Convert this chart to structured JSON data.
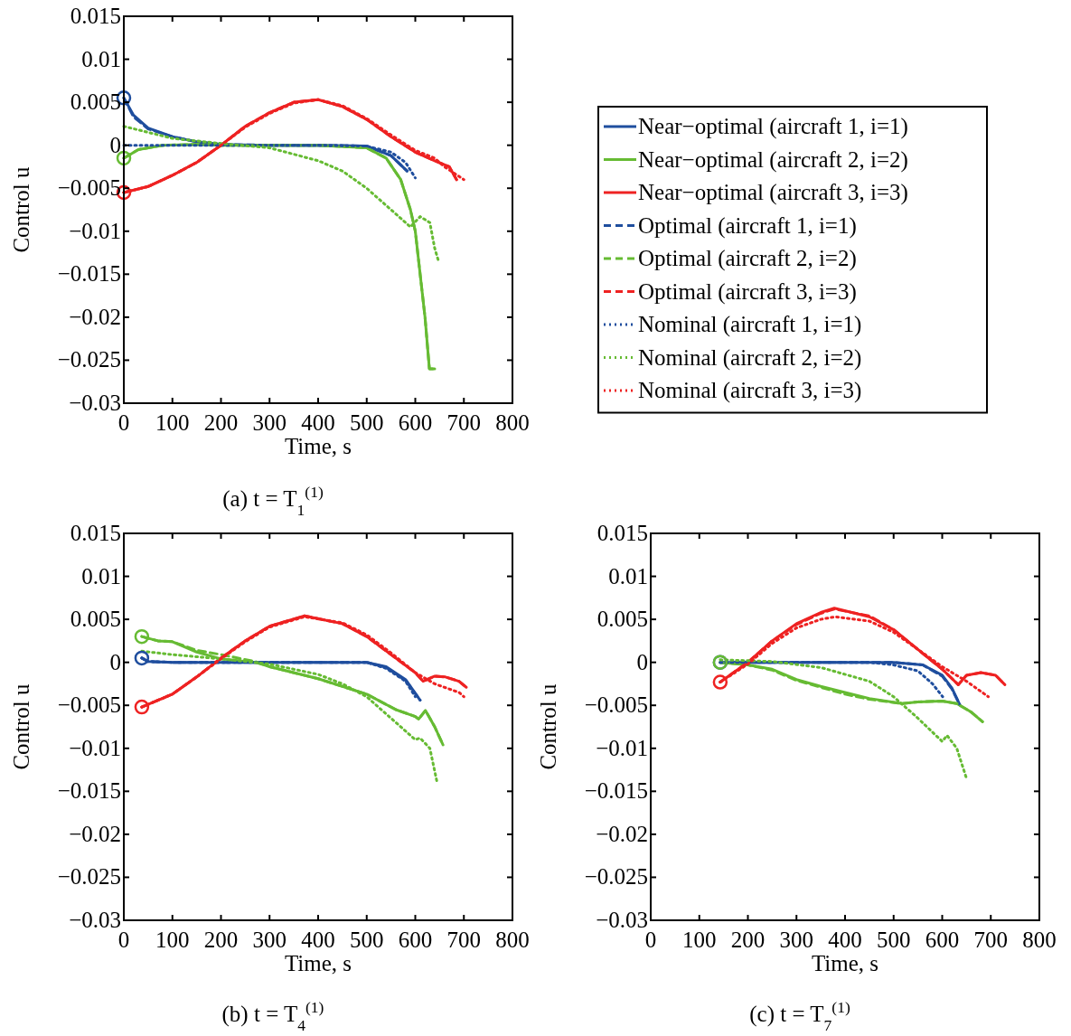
{
  "chart_data": [
    {
      "type": "line",
      "title": "(a) t = T$_{1}$$^{(1)}$",
      "xlabel": "Time, s",
      "ylabel": "Control u",
      "xlim": [
        0,
        800
      ],
      "ylim": [
        -0.03,
        0.015
      ],
      "xticks": [
        0,
        100,
        200,
        300,
        400,
        500,
        600,
        700,
        800
      ],
      "yticks": [
        0.015,
        0.01,
        0.005,
        0,
        {
          "value": -0.005,
          "label": "−0.005"
        },
        {
          "value": -0.01,
          "label": "−0.01"
        },
        {
          "value": -0.015,
          "label": "−0.015"
        },
        {
          "value": -0.02,
          "label": "−0.02"
        },
        {
          "value": -0.025,
          "label": "−0.025"
        },
        {
          "value": -0.03,
          "label": "−0.03"
        }
      ],
      "grid": false,
      "legend": "right",
      "series": [
        {
          "name": "Near−optimal (aircraft 1, i=1)",
          "color": "#1f4e9e",
          "line_style": "solid",
          "x": [
            0,
            20,
            50,
            100,
            150,
            200,
            300,
            400,
            500,
            550,
            583
          ],
          "values": [
            0.0055,
            0.0035,
            0.002,
            0.001,
            0.0004,
            0.0001,
            0,
            0,
            -0.0001,
            -0.0012,
            -0.003
          ]
        },
        {
          "name": "Near−optimal (aircraft 2, i=2)",
          "color": "#66bb33",
          "line_style": "solid",
          "x": [
            0,
            30,
            80,
            150,
            200,
            400,
            500,
            540,
            570,
            590,
            600,
            610,
            620,
            629,
            640
          ],
          "values": [
            -0.0015,
            -0.0005,
            0,
            0.0001,
            0,
            0,
            -0.0003,
            -0.0015,
            -0.004,
            -0.0075,
            -0.01,
            -0.015,
            -0.02,
            -0.026,
            -0.026
          ]
        },
        {
          "name": "Near−optimal (aircraft 3, i=3)",
          "color": "#ee2222",
          "line_style": "solid",
          "x": [
            0,
            50,
            100,
            150,
            200,
            250,
            300,
            350,
            400,
            450,
            500,
            550,
            600,
            640,
            670,
            685
          ],
          "values": [
            -0.0055,
            -0.0048,
            -0.0035,
            -0.002,
            0,
            0.0022,
            0.0038,
            0.005,
            0.0053,
            0.0045,
            0.003,
            0.001,
            -0.0008,
            -0.0018,
            -0.0025,
            -0.004
          ]
        },
        {
          "name": "Optimal (aircraft 1, i=1)",
          "color": "#1f4e9e",
          "line_style": "dashed",
          "x": [
            0,
            20,
            50,
            100,
            150,
            200,
            300,
            400,
            500,
            550,
            583
          ],
          "values": [
            0.0055,
            0.0033,
            0.0019,
            0.001,
            0.0004,
            0.0001,
            0,
            0,
            -0.0001,
            -0.0012,
            -0.003
          ]
        },
        {
          "name": "Optimal (aircraft 2, i=2)",
          "color": "#66bb33",
          "line_style": "dashed",
          "x": [
            0,
            30,
            80,
            150,
            200,
            400,
            500,
            540,
            570,
            590,
            600,
            610,
            620,
            629,
            640
          ],
          "values": [
            -0.0015,
            -0.0005,
            0,
            0.0001,
            0,
            0,
            -0.0003,
            -0.0015,
            -0.004,
            -0.0075,
            -0.01,
            -0.015,
            -0.02,
            -0.026,
            -0.026
          ]
        },
        {
          "name": "Optimal (aircraft 3, i=3)",
          "color": "#ee2222",
          "line_style": "dashed",
          "x": [
            0,
            50,
            100,
            150,
            200,
            250,
            300,
            350,
            400,
            450,
            500,
            550,
            600,
            640,
            670,
            685
          ],
          "values": [
            -0.0055,
            -0.0048,
            -0.0035,
            -0.002,
            0,
            0.0022,
            0.0038,
            0.005,
            0.0053,
            0.0045,
            0.003,
            0.001,
            -0.0008,
            -0.0018,
            -0.0025,
            -0.004
          ]
        },
        {
          "name": "Nominal (aircraft 1, i=1)",
          "color": "#1f4e9e",
          "line_style": "dotted",
          "x": [
            0,
            200,
            400,
            500,
            550,
            580,
            600
          ],
          "values": [
            0,
            0,
            0,
            -0.0001,
            -0.0008,
            -0.002,
            -0.0038
          ]
        },
        {
          "name": "Nominal (aircraft 2, i=2)",
          "color": "#66bb33",
          "line_style": "dotted",
          "x": [
            0,
            50,
            100,
            200,
            300,
            400,
            450,
            500,
            550,
            590,
            610,
            630,
            640,
            649
          ],
          "values": [
            0.0022,
            0.0015,
            0.0008,
            0.0002,
            -0.0003,
            -0.0018,
            -0.003,
            -0.005,
            -0.0075,
            -0.0095,
            -0.0083,
            -0.009,
            -0.012,
            -0.0137
          ]
        },
        {
          "name": "Nominal (aircraft 3, i=3)",
          "color": "#ee2222",
          "line_style": "dotted",
          "x": [
            0,
            50,
            100,
            150,
            200,
            250,
            300,
            350,
            400,
            450,
            500,
            550,
            600,
            640,
            660,
            700
          ],
          "values": [
            -0.0055,
            -0.0048,
            -0.0035,
            -0.002,
            0,
            0.0021,
            0.0037,
            0.0049,
            0.0053,
            0.0046,
            0.0031,
            0.0012,
            -0.0006,
            -0.0015,
            -0.0025,
            -0.004
          ]
        },
        {
          "type": "scatter",
          "marker": "circle",
          "color": "#1f4e9e",
          "x": [
            0
          ],
          "values": [
            0.0055
          ]
        },
        {
          "type": "scatter",
          "marker": "circle",
          "color": "#66bb33",
          "x": [
            0
          ],
          "values": [
            -0.0015
          ]
        },
        {
          "type": "scatter",
          "marker": "circle",
          "color": "#ee2222",
          "x": [
            0
          ],
          "values": [
            -0.0055
          ]
        }
      ]
    },
    {
      "type": "line",
      "title": "(b) t = T$_{4}$$^{(1)}$",
      "xlabel": "Time, s",
      "ylabel": "Control u",
      "xlim": [
        0,
        800
      ],
      "ylim": [
        -0.03,
        0.015
      ],
      "xticks": [
        0,
        100,
        200,
        300,
        400,
        500,
        600,
        700,
        800
      ],
      "yticks": [
        0.015,
        0.01,
        0.005,
        0,
        {
          "value": -0.005,
          "label": "−0.005"
        },
        {
          "value": -0.01,
          "label": "−0.01"
        },
        {
          "value": -0.015,
          "label": "−0.015"
        },
        {
          "value": -0.02,
          "label": "−0.02"
        },
        {
          "value": -0.025,
          "label": "−0.025"
        },
        {
          "value": -0.03,
          "label": "−0.03"
        }
      ],
      "grid": false,
      "legend": false,
      "series": [
        {
          "color": "#1f4e9e",
          "line_style": "solid",
          "x": [
            37,
            50,
            100,
            500,
            540,
            580,
            610
          ],
          "values": [
            0.0005,
            0.0001,
            0,
            0,
            -0.0005,
            -0.002,
            -0.0044
          ]
        },
        {
          "color": "#66bb33",
          "line_style": "solid",
          "x": [
            37,
            70,
            100,
            150,
            200,
            270,
            300,
            400,
            500,
            560,
            600,
            607,
            621,
            640,
            657
          ],
          "values": [
            0.003,
            0.0025,
            0.0024,
            0.0012,
            0.0004,
            0,
            -0.0005,
            -0.0019,
            -0.0037,
            -0.0055,
            -0.0063,
            -0.0066,
            -0.0056,
            -0.0075,
            -0.0096
          ]
        },
        {
          "color": "#ee2222",
          "line_style": "solid",
          "x": [
            37,
            100,
            150,
            200,
            250,
            300,
            372,
            450,
            500,
            550,
            600,
            616,
            640,
            662,
            690,
            705
          ],
          "values": [
            -0.0052,
            -0.0037,
            -0.0017,
            0.0005,
            0.0025,
            0.0042,
            0.0054,
            0.0045,
            0.003,
            0.0009,
            -0.0012,
            -0.0022,
            -0.0016,
            -0.0017,
            -0.0022,
            -0.0029
          ]
        },
        {
          "color": "#1f4e9e",
          "line_style": "dashed",
          "x": [
            37,
            50,
            100,
            500,
            540,
            580,
            610
          ],
          "values": [
            0.0005,
            0.0001,
            0,
            0,
            -0.0006,
            -0.0021,
            -0.0044
          ]
        },
        {
          "color": "#66bb33",
          "line_style": "dashed",
          "x": [
            37,
            70,
            100,
            150,
            200,
            270,
            300,
            400,
            500,
            560,
            600,
            607,
            621,
            640,
            657
          ],
          "values": [
            0.003,
            0.0025,
            0.0024,
            0.0014,
            0.0009,
            0.0001,
            -0.0005,
            -0.0019,
            -0.0037,
            -0.0055,
            -0.0063,
            -0.0066,
            -0.0056,
            -0.0075,
            -0.0096
          ]
        },
        {
          "color": "#ee2222",
          "line_style": "dashed",
          "x": [
            37,
            100,
            150,
            200,
            250,
            300,
            372,
            450,
            500,
            550,
            600,
            616,
            640,
            662,
            690,
            705
          ],
          "values": [
            -0.0052,
            -0.0037,
            -0.0017,
            0.0005,
            0.0025,
            0.0042,
            0.0054,
            0.0045,
            0.003,
            0.0009,
            -0.0012,
            -0.0022,
            -0.0016,
            -0.0017,
            -0.0022,
            -0.0029
          ]
        },
        {
          "color": "#1f4e9e",
          "line_style": "dotted",
          "x": [
            37,
            50,
            100,
            500,
            540,
            580,
            600
          ],
          "values": [
            0.0005,
            0.0001,
            0,
            0,
            -0.0007,
            -0.0022,
            -0.004
          ]
        },
        {
          "color": "#66bb33",
          "line_style": "dotted",
          "x": [
            37,
            100,
            200,
            300,
            400,
            450,
            500,
            550,
            600,
            610,
            630,
            645
          ],
          "values": [
            0.0013,
            0.0009,
            0.0004,
            -0.0002,
            -0.0014,
            -0.0025,
            -0.004,
            -0.0065,
            -0.009,
            -0.0088,
            -0.01,
            -0.014
          ]
        },
        {
          "color": "#ee2222",
          "line_style": "dotted",
          "x": [
            37,
            100,
            150,
            200,
            250,
            300,
            372,
            450,
            500,
            550,
            600,
            640,
            690,
            700
          ],
          "values": [
            -0.0052,
            -0.0037,
            -0.0017,
            0.0004,
            0.0024,
            0.0041,
            0.0053,
            0.0046,
            0.0032,
            0.0011,
            -0.0012,
            -0.0025,
            -0.0035,
            -0.004
          ]
        },
        {
          "type": "scatter",
          "marker": "circle",
          "color": "#1f4e9e",
          "x": [
            37
          ],
          "values": [
            0.0005
          ]
        },
        {
          "type": "scatter",
          "marker": "circle",
          "color": "#66bb33",
          "x": [
            37
          ],
          "values": [
            0.003
          ]
        },
        {
          "type": "scatter",
          "marker": "circle",
          "color": "#ee2222",
          "x": [
            37
          ],
          "values": [
            -0.0052
          ]
        }
      ]
    },
    {
      "type": "line",
      "title": "(c) t = T$_{7}$$^{(1)}$",
      "xlabel": "Time, s",
      "ylabel": "Control u",
      "xlim": [
        0,
        800
      ],
      "ylim": [
        -0.03,
        0.015
      ],
      "xticks": [
        0,
        100,
        200,
        300,
        400,
        500,
        600,
        700,
        800
      ],
      "yticks": [
        0.015,
        0.01,
        0.005,
        0,
        {
          "value": -0.005,
          "label": "−0.005"
        },
        {
          "value": -0.01,
          "label": "−0.01"
        },
        {
          "value": -0.015,
          "label": "−0.015"
        },
        {
          "value": -0.02,
          "label": "−0.02"
        },
        {
          "value": -0.025,
          "label": "−0.025"
        },
        {
          "value": -0.03,
          "label": "−0.03"
        }
      ],
      "grid": false,
      "legend": false,
      "series": [
        {
          "color": "#1f4e9e",
          "line_style": "solid",
          "x": [
            143,
            500,
            560,
            600,
            620,
            636
          ],
          "values": [
            0,
            0,
            -0.0003,
            -0.0015,
            -0.003,
            -0.0049
          ]
        },
        {
          "color": "#66bb33",
          "line_style": "solid",
          "x": [
            143,
            200,
            250,
            300,
            350,
            400,
            450,
            517,
            550,
            600,
            630,
            660,
            683
          ],
          "values": [
            0,
            -0.0003,
            -0.0008,
            -0.002,
            -0.0028,
            -0.0035,
            -0.0042,
            -0.0048,
            -0.0046,
            -0.0045,
            -0.0048,
            -0.0058,
            -0.0069
          ]
        },
        {
          "color": "#ee2222",
          "line_style": "solid",
          "x": [
            143,
            200,
            250,
            300,
            350,
            378,
            450,
            500,
            550,
            600,
            633,
            650,
            680,
            710,
            729
          ],
          "values": [
            -0.0023,
            0,
            0.0025,
            0.0045,
            0.0058,
            0.0063,
            0.0053,
            0.0038,
            0.0015,
            -0.0008,
            -0.0026,
            -0.0015,
            -0.0012,
            -0.0015,
            -0.0026
          ]
        },
        {
          "color": "#1f4e9e",
          "line_style": "dashed",
          "x": [
            143,
            500,
            560,
            600,
            620,
            636
          ],
          "values": [
            0,
            0,
            -0.0003,
            -0.0016,
            -0.0031,
            -0.0049
          ]
        },
        {
          "color": "#66bb33",
          "line_style": "dashed",
          "x": [
            143,
            200,
            250,
            300,
            350,
            400,
            450,
            517,
            550,
            600,
            630,
            660,
            683
          ],
          "values": [
            0,
            -0.0003,
            -0.0009,
            -0.0021,
            -0.0029,
            -0.0037,
            -0.0043,
            -0.0048,
            -0.0046,
            -0.0045,
            -0.0048,
            -0.0058,
            -0.0069
          ]
        },
        {
          "color": "#ee2222",
          "line_style": "dashed",
          "x": [
            143,
            200,
            250,
            300,
            350,
            378,
            450,
            500,
            550,
            600,
            633,
            650,
            680,
            710,
            729
          ],
          "values": [
            -0.0023,
            0,
            0.0025,
            0.0044,
            0.0057,
            0.0062,
            0.0054,
            0.0038,
            0.0015,
            -0.0008,
            -0.0026,
            -0.0015,
            -0.0012,
            -0.0015,
            -0.0026
          ]
        },
        {
          "color": "#1f4e9e",
          "line_style": "dotted",
          "x": [
            143,
            450,
            500,
            550,
            580,
            601
          ],
          "values": [
            0,
            0,
            -0.0003,
            -0.001,
            -0.0025,
            -0.004
          ]
        },
        {
          "color": "#66bb33",
          "line_style": "dotted",
          "x": [
            143,
            250,
            350,
            450,
            500,
            550,
            600,
            610,
            630,
            650
          ],
          "values": [
            0.0003,
            0.0001,
            -0.0006,
            -0.0022,
            -0.004,
            -0.0065,
            -0.0092,
            -0.0085,
            -0.01,
            -0.0135
          ]
        },
        {
          "color": "#ee2222",
          "line_style": "dotted",
          "x": [
            143,
            200,
            250,
            300,
            350,
            380,
            450,
            500,
            550,
            600,
            650,
            695
          ],
          "values": [
            -0.0023,
            -0.0002,
            0.0022,
            0.004,
            0.005,
            0.0053,
            0.0048,
            0.0035,
            0.0015,
            -0.0005,
            -0.0022,
            -0.004
          ]
        },
        {
          "type": "scatter",
          "marker": "circle",
          "color": "#1f4e9e",
          "x": [
            143
          ],
          "values": [
            0
          ]
        },
        {
          "type": "scatter",
          "marker": "circle",
          "color": "#66bb33",
          "x": [
            143
          ],
          "values": [
            0
          ]
        },
        {
          "type": "scatter",
          "marker": "circle",
          "color": "#ee2222",
          "x": [
            143
          ],
          "values": [
            -0.0023
          ]
        }
      ]
    }
  ]
}
